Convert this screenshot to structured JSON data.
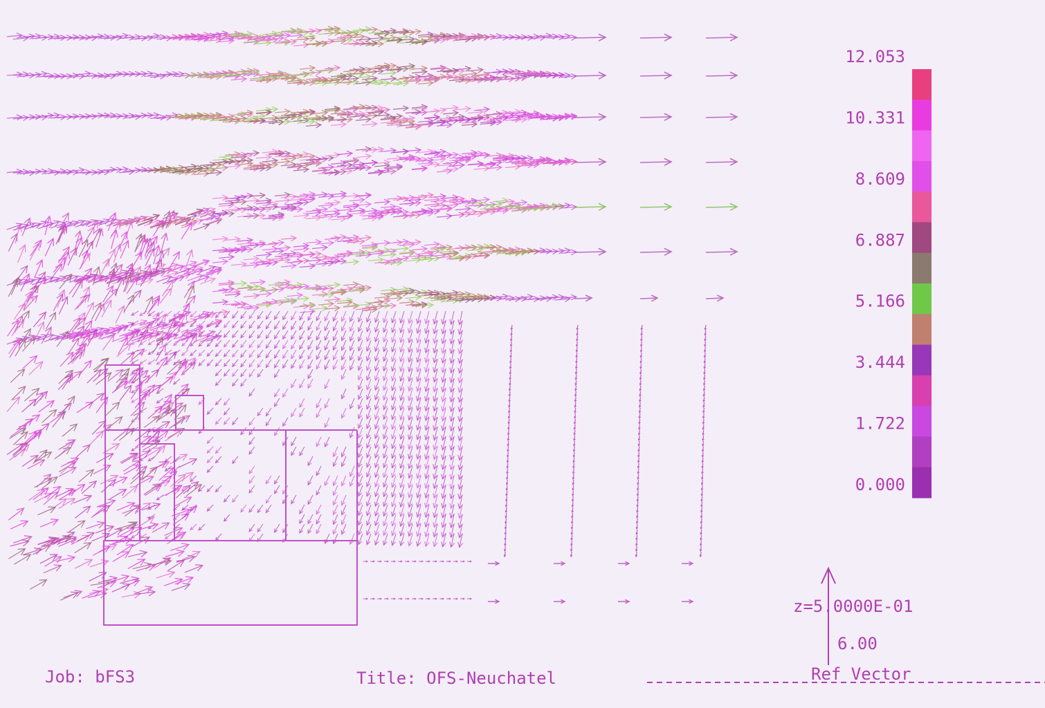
{
  "colorbar": {
    "labels": [
      "12.053",
      "10.331",
      "8.609",
      "6.887",
      "5.166",
      "3.444",
      "1.722",
      "0.000"
    ],
    "colors": [
      "#e8407f",
      "#e83ce0",
      "#ee66f0",
      "#e050e8",
      "#e8589a",
      "#a04880",
      "#8a7a70",
      "#70c848",
      "#c08070",
      "#9838b8",
      "#d840b0",
      "#c848e0",
      "#b040c0",
      "#9a30b0"
    ]
  },
  "footer": {
    "job": "Job: bFS3",
    "title": "Title: OFS-Neuchatel"
  },
  "reference": {
    "z": "z=5.0000E-01",
    "magnitude": "6.00",
    "label": "Ref Vector"
  }
}
